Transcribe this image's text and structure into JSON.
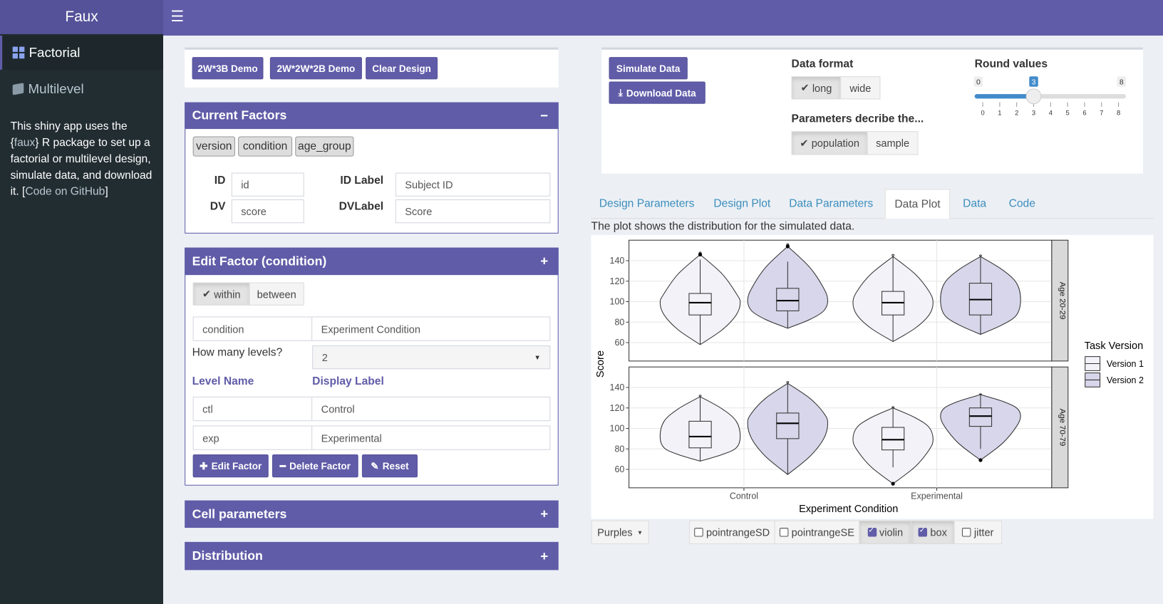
{
  "sidebar": {
    "title": "Faux",
    "menu": [
      "Factorial",
      "Multilevel"
    ],
    "about": [
      "This shiny app uses the {",
      "faux",
      "} R package to set up a factorial or multilevel design, simulate data, and download it. [",
      "Code on GitHub",
      "]"
    ]
  },
  "demo_buttons": [
    "2W*3B Demo",
    "2W*2W*2B Demo",
    "Clear Design"
  ],
  "current_factors": {
    "title": "Current Factors",
    "collapse": "−",
    "factors": [
      "version",
      "condition",
      "age_group"
    ],
    "fields": [
      {
        "label": "ID",
        "value": "id"
      },
      {
        "label": "ID Label",
        "value": "Subject ID"
      },
      {
        "label": "DV",
        "value": "score"
      },
      {
        "label": "DVLabel",
        "value": "Score"
      }
    ]
  },
  "edit_factor": {
    "title": "Edit Factor (condition)",
    "expand": "+",
    "design": [
      "within",
      "between"
    ],
    "name": "condition",
    "label": "Experiment Condition",
    "levels_label": "How many levels?",
    "levels": "2",
    "columns": [
      "Level Name",
      "Display Label"
    ],
    "rows": [
      [
        "ctl",
        "Control"
      ],
      [
        "exp",
        "Experimental"
      ]
    ],
    "buttons": [
      "Edit Factor",
      "Delete Factor",
      "Reset"
    ]
  },
  "collapsed_boxes": [
    {
      "title": "Cell parameters",
      "expand": "+"
    },
    {
      "title": "Distribution",
      "expand": "+"
    }
  ],
  "sim_buttons": [
    "Simulate Data",
    "Download Data"
  ],
  "data_format": {
    "label": "Data format",
    "options": [
      "long",
      "wide"
    ]
  },
  "params": {
    "label": "Parameters decribe the...",
    "options": [
      "population",
      "sample"
    ]
  },
  "round": {
    "label": "Round values",
    "min": 0,
    "max": 8,
    "value": 3,
    "ticks": [
      0,
      1,
      2,
      3,
      4,
      5,
      6,
      7,
      8
    ]
  },
  "tabs": [
    "Design Parameters",
    "Design Plot",
    "Data Parameters",
    "Data Plot",
    "Data",
    "Code"
  ],
  "note": "The plot shows the distribution for the simulated data.",
  "chart_data": {
    "type": "violin",
    "xlabel": "Experiment Condition",
    "ylabel": "Score",
    "categories": [
      "Control",
      "Experimental"
    ],
    "legend_title": "Task Version",
    "series": [
      {
        "name": "Version 1",
        "color": "#f3f2f9"
      },
      {
        "name": "Version 2",
        "color": "#d7d6ea"
      }
    ],
    "ylim": [
      42,
      160
    ],
    "yticks": [
      60,
      80,
      100,
      120,
      140
    ],
    "grid": true,
    "panels": [
      {
        "label": "Age 20-29",
        "boxes": [
          [
            {
              "min": 58,
              "q1": 87,
              "median": 99,
              "q3": 108,
              "max": 141,
              "outliers": [
                146
              ]
            },
            {
              "min": 74,
              "q1": 91,
              "median": 101,
              "q3": 113,
              "max": 139,
              "outliers": [
                154
              ]
            }
          ],
          [
            {
              "min": 61,
              "q1": 87,
              "median": 99,
              "q3": 110,
              "max": 144,
              "outliers": []
            },
            {
              "min": 68,
              "q1": 87,
              "median": 102,
              "q3": 118,
              "max": 144,
              "outliers": []
            }
          ]
        ]
      },
      {
        "label": "Age 70-79",
        "boxes": [
          [
            {
              "min": 68,
              "q1": 81,
              "median": 92,
              "q3": 107,
              "max": 131,
              "outliers": []
            },
            {
              "min": 55,
              "q1": 90,
              "median": 105,
              "q3": 115,
              "max": 144,
              "outliers": []
            }
          ],
          [
            {
              "min": 62,
              "q1": 79,
              "median": 89,
              "q3": 101,
              "max": 120,
              "outliers": [
                46
              ]
            },
            {
              "min": 80,
              "q1": 102,
              "median": 112,
              "q3": 120,
              "max": 133,
              "outliers": [
                69
              ]
            }
          ]
        ]
      }
    ]
  },
  "palette": "Purples",
  "plot_options": [
    "pointrangeSD",
    "pointrangeSE",
    "violin",
    "box",
    "jitter"
  ],
  "plot_checked": [
    false,
    false,
    true,
    true,
    false
  ]
}
